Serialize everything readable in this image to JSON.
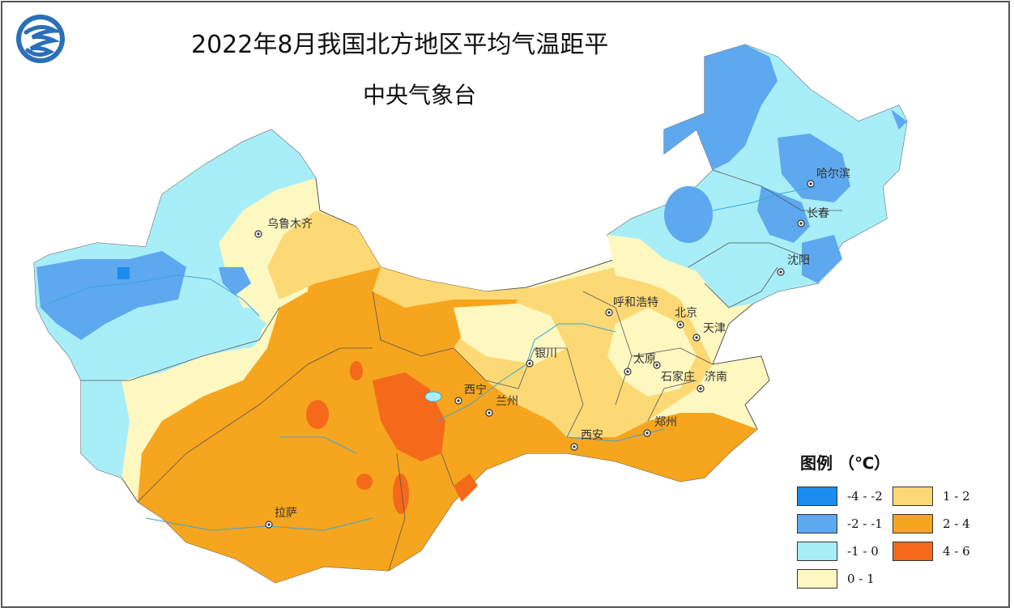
{
  "title": "2022年8月我国北方地区平均气温距平",
  "subtitle": "中央气象台",
  "legend": {
    "title": "图例 （℃）",
    "items": [
      {
        "label": "-4 - -2",
        "color": "#1a8cf0"
      },
      {
        "label": "-2 - -1",
        "color": "#5ea8ef"
      },
      {
        "label": "-1 - 0",
        "color": "#a8eef8"
      },
      {
        "label": "0 - 1",
        "color": "#fdf7c0"
      },
      {
        "label": "1 - 2",
        "color": "#fcd975"
      },
      {
        "label": "2 - 4",
        "color": "#f6a51e"
      },
      {
        "label": "4 - 6",
        "color": "#f46a1a"
      }
    ]
  },
  "cities": [
    {
      "name": "乌鲁木齐"
    },
    {
      "name": "哈尔滨"
    },
    {
      "name": "长春"
    },
    {
      "name": "沈阳"
    },
    {
      "name": "呼和浩特"
    },
    {
      "name": "北京"
    },
    {
      "name": "天津"
    },
    {
      "name": "银川"
    },
    {
      "name": "太原"
    },
    {
      "name": "石家庄"
    },
    {
      "name": "济南"
    },
    {
      "name": "西宁"
    },
    {
      "name": "兰州"
    },
    {
      "name": "郑州"
    },
    {
      "name": "西安"
    },
    {
      "name": "拉萨"
    }
  ]
}
